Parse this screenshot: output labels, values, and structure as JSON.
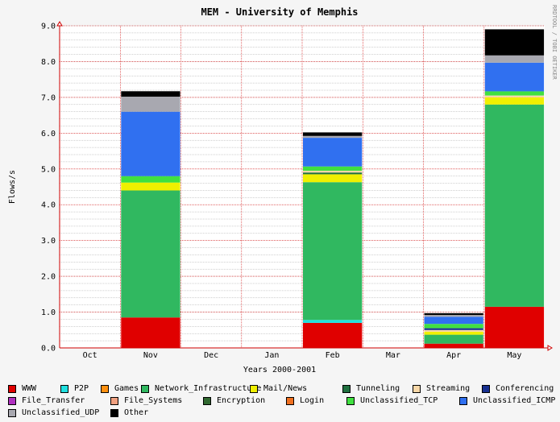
{
  "chart_data": {
    "type": "bar",
    "stacked": true,
    "title": "MEM - University of Memphis",
    "xlabel": "Years 2000-2001",
    "ylabel": "Flows/s",
    "side_note": "RRDTOOL / TOBI OETIKER",
    "categories": [
      "Oct",
      "Nov",
      "Dec",
      "Jan",
      "Feb",
      "Mar",
      "Apr",
      "May"
    ],
    "ylim": [
      0,
      9
    ],
    "yticks": [
      "0.0",
      "1.0",
      "2.0",
      "3.0",
      "4.0",
      "5.0",
      "6.0",
      "7.0",
      "8.0",
      "9.0"
    ],
    "grid": true,
    "legend_position": "bottom",
    "series": [
      {
        "name": "WWW",
        "color": "#e00000",
        "values": [
          0,
          0.85,
          0,
          0,
          0.7,
          0,
          0.12,
          1.15
        ]
      },
      {
        "name": "P2P",
        "color": "#20e0e0",
        "values": [
          0,
          0,
          0,
          0,
          0.08,
          0,
          0,
          0
        ]
      },
      {
        "name": "Games",
        "color": "#ff9010",
        "values": [
          0,
          0,
          0,
          0,
          0,
          0,
          0,
          0
        ]
      },
      {
        "name": "Network_Infrastructure",
        "color": "#30b860",
        "values": [
          0,
          3.55,
          0,
          0,
          3.85,
          0,
          0.25,
          5.65
        ]
      },
      {
        "name": "Mail/News",
        "color": "#f0f000",
        "values": [
          0,
          0.22,
          0,
          0,
          0.22,
          0,
          0.08,
          0.2
        ]
      },
      {
        "name": "Tunneling",
        "color": "#207040",
        "values": [
          0,
          0,
          0,
          0,
          0.05,
          0,
          0,
          0
        ]
      },
      {
        "name": "Streaming",
        "color": "#f8d8a8",
        "values": [
          0,
          0,
          0,
          0,
          0.05,
          0,
          0.05,
          0.05
        ]
      },
      {
        "name": "Conferencing",
        "color": "#183090",
        "values": [
          0,
          0,
          0,
          0,
          0,
          0,
          0.05,
          0
        ]
      },
      {
        "name": "File_Transfer",
        "color": "#b030c0",
        "values": [
          0,
          0,
          0,
          0,
          0,
          0,
          0,
          0
        ]
      },
      {
        "name": "File_Systems",
        "color": "#f0a080",
        "values": [
          0,
          0,
          0,
          0,
          0,
          0,
          0,
          0
        ]
      },
      {
        "name": "Encryption",
        "color": "#306830",
        "values": [
          0,
          0,
          0,
          0,
          0,
          0,
          0,
          0
        ]
      },
      {
        "name": "Login",
        "color": "#f07020",
        "values": [
          0,
          0,
          0,
          0,
          0,
          0,
          0,
          0
        ]
      },
      {
        "name": "Unclassified_TCP",
        "color": "#40e040",
        "values": [
          0,
          0.18,
          0,
          0,
          0.12,
          0,
          0.12,
          0.12
        ]
      },
      {
        "name": "Unclassified_ICMP",
        "color": "#3070f0",
        "values": [
          0,
          1.8,
          0,
          0,
          0.8,
          0,
          0.2,
          0.8
        ]
      },
      {
        "name": "Unclassified_UDP",
        "color": "#a8a8b0",
        "values": [
          0,
          0.42,
          0,
          0,
          0.05,
          0,
          0.05,
          0.2
        ]
      },
      {
        "name": "Other",
        "color": "#000000",
        "values": [
          0,
          0.15,
          0,
          0,
          0.1,
          0,
          0.05,
          0.73
        ]
      }
    ]
  }
}
